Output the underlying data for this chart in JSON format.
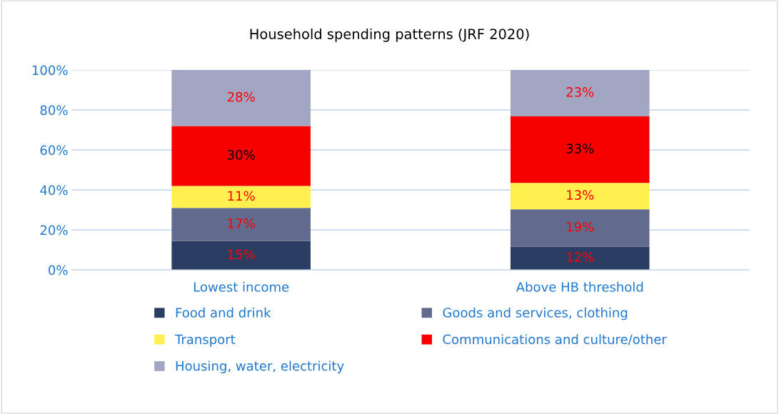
{
  "chart_data": {
    "type": "bar",
    "stacked": true,
    "title": "Household spending patterns (JRF 2020)",
    "categories": [
      "Lowest income",
      "Above HB threshold"
    ],
    "series": [
      {
        "name": "Food and drink",
        "color": "#2b3d63",
        "values": [
          14.5,
          11.7
        ],
        "value_labels": [
          "15%",
          "12%"
        ]
      },
      {
        "name": "Goods and services, clothing",
        "color": "#626b8d",
        "values": [
          16.5,
          18.6
        ],
        "value_labels": [
          "17%",
          "19%"
        ]
      },
      {
        "name": "Transport",
        "color": "#fff050",
        "values": [
          11,
          13.2
        ],
        "value_labels": [
          "11%",
          "13%"
        ]
      },
      {
        "name": "Communications and culture/other",
        "color": "#f60000",
        "values": [
          30,
          33.3
        ],
        "value_labels": [
          "30%",
          "33%"
        ]
      },
      {
        "name": "Housing, water, electricity",
        "color": "#a2a6c2",
        "values": [
          28,
          23.2
        ],
        "value_labels": [
          "28%",
          "23%"
        ]
      }
    ],
    "ylim": [
      0,
      100
    ],
    "yticks": [
      {
        "value": 0,
        "label": "0%"
      },
      {
        "value": 20,
        "label": "20%"
      },
      {
        "value": 40,
        "label": "40%"
      },
      {
        "value": 60,
        "label": "60%"
      },
      {
        "value": 80,
        "label": "80%"
      },
      {
        "value": 100,
        "label": "100%"
      }
    ],
    "grid": "y",
    "legend": "bottom"
  }
}
